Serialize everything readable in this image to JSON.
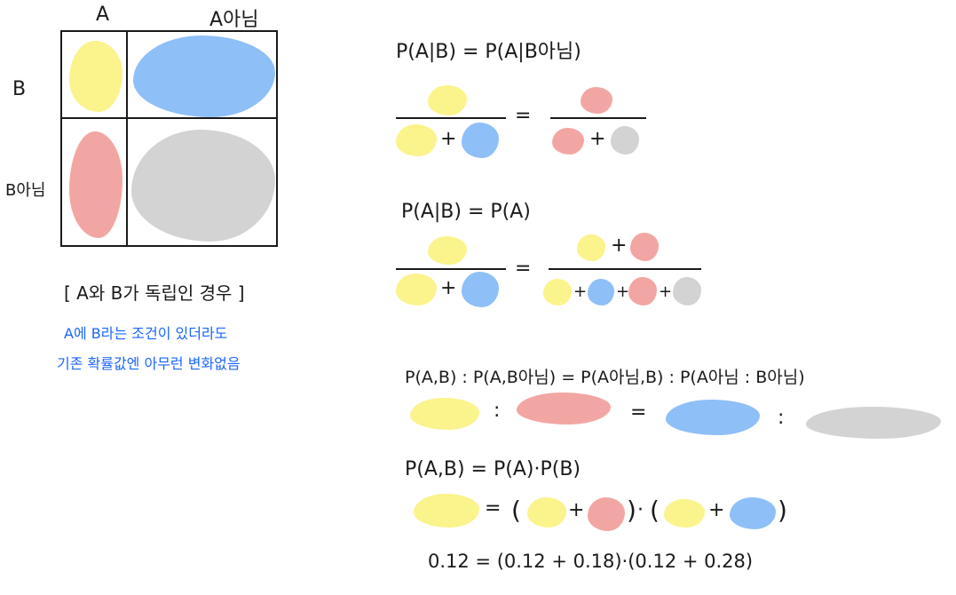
{
  "colors": {
    "yellow": "#fbf38c",
    "blue": "#8fbff7",
    "red": "#f2a6a3",
    "gray": "#d3d3d3",
    "ink": "#1a1a1a",
    "note_blue": "#1a66ff"
  },
  "table": {
    "col_a": "A",
    "col_not_a": "A아님",
    "row_b": "B",
    "row_not_b": "B아님"
  },
  "caption": "[ A와 B가  독립인 경우 ]",
  "note_line1": "A에 B라는 조건이 있더라도",
  "note_line2": "기존 확률값엔 아무런 변화없음",
  "eq1": "P(A|B) = P(A|B아님)",
  "eq2": "P(A|B) = P(A)",
  "eq3": "P(A,B) : P(A,B아님) = P(A아님,B) : P(A아님 : B아님)",
  "eq4": "P(A,B) = P(A)·P(B)",
  "numeric": "0.12  =  (0.12 + 0.18)·(0.12 + 0.28)",
  "ops": {
    "plus": "+",
    "equals": "=",
    "colon": ":",
    "dot": "·",
    "lparen": "(",
    "rparen": ")"
  }
}
